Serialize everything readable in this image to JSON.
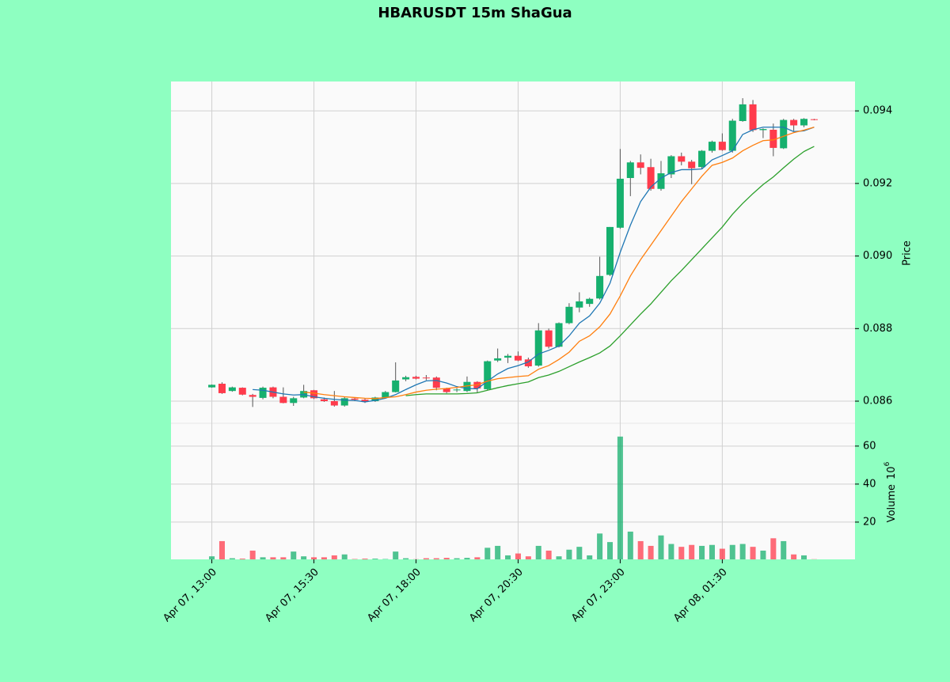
{
  "chart_data": {
    "type": "candlestick",
    "title": "HBARUSDT 15m ShaGua",
    "y_label": "Price",
    "volume_label": "Volume",
    "volume_unit": {
      "base": "10",
      "exponent": "6"
    },
    "xlim": [
      -4,
      63
    ],
    "xticks": [
      {
        "value": 0,
        "label": "Apr 07, 13:00"
      },
      {
        "value": 10,
        "label": "Apr 07, 15:30"
      },
      {
        "value": 20,
        "label": "Apr 07, 18:00"
      },
      {
        "value": 30,
        "label": "Apr 07, 20:30"
      },
      {
        "value": 40,
        "label": "Apr 07, 23:00"
      },
      {
        "value": 50,
        "label": "Apr 08, 01:30"
      }
    ],
    "ylim": [
      0.08539,
      0.09481
    ],
    "yticks": [
      0.086,
      0.088,
      {
        "value": 0.09,
        "label": "0.090"
      },
      0.092,
      0.094
    ],
    "volume_ylim": [
      0.4,
      72
    ],
    "volume_ticks": [
      20,
      40,
      60
    ],
    "grid": true,
    "up_color": "#16b06e",
    "down_color": "#ff3b4c",
    "open": [
      0.08638,
      0.08648,
      0.08628,
      0.08637,
      0.08617,
      0.08609,
      0.08638,
      0.08612,
      0.08595,
      0.0861,
      0.0863,
      0.08605,
      0.086,
      0.08588,
      0.08607,
      0.08604,
      0.086,
      0.0861,
      0.08625,
      0.0866,
      0.08667,
      0.08665,
      0.08665,
      0.08635,
      0.0863,
      0.08628,
      0.08653,
      0.08633,
      0.08712,
      0.0872,
      0.08725,
      0.08715,
      0.08698,
      0.08795,
      0.0875,
      0.08815,
      0.08858,
      0.08868,
      0.08883,
      0.08948,
      0.09078,
      0.09215,
      0.09258,
      0.09245,
      0.09185,
      0.09225,
      0.09275,
      0.0926,
      0.09245,
      0.0929,
      0.09315,
      0.0929,
      0.09372,
      0.09418,
      0.09347,
      0.09348,
      0.09297,
      0.09375,
      0.0936,
      0.09377
    ],
    "high": [
      0.08646,
      0.08652,
      0.0864,
      0.08638,
      0.0862,
      0.0864,
      0.0864,
      0.08638,
      0.08612,
      0.08645,
      0.08631,
      0.0861,
      0.08628,
      0.08612,
      0.0861,
      0.08608,
      0.08612,
      0.08628,
      0.08707,
      0.0867,
      0.0867,
      0.08672,
      0.08668,
      0.08637,
      0.08636,
      0.08668,
      0.08655,
      0.08712,
      0.08745,
      0.0873,
      0.08737,
      0.0872,
      0.08815,
      0.088,
      0.08817,
      0.0887,
      0.089,
      0.08885,
      0.08998,
      0.0908,
      0.09295,
      0.09262,
      0.0928,
      0.09268,
      0.09262,
      0.09278,
      0.09285,
      0.09265,
      0.09292,
      0.09318,
      0.09338,
      0.09378,
      0.09435,
      0.0943,
      0.09352,
      0.09365,
      0.09378,
      0.09378,
      0.0938,
      0.09378
    ],
    "low": [
      0.08637,
      0.0862,
      0.08626,
      0.08616,
      0.08584,
      0.08605,
      0.08608,
      0.08594,
      0.08587,
      0.08608,
      0.08606,
      0.08598,
      0.08585,
      0.08585,
      0.086,
      0.08595,
      0.08598,
      0.08608,
      0.08624,
      0.08655,
      0.0866,
      0.08658,
      0.0863,
      0.08622,
      0.08625,
      0.08625,
      0.08622,
      0.0863,
      0.08708,
      0.08705,
      0.0871,
      0.08692,
      0.08695,
      0.08745,
      0.08748,
      0.08812,
      0.08845,
      0.0886,
      0.0888,
      0.08945,
      0.09075,
      0.09165,
      0.09225,
      0.0918,
      0.0918,
      0.09215,
      0.0925,
      0.09198,
      0.0924,
      0.09285,
      0.0929,
      0.09285,
      0.0937,
      0.09342,
      0.09325,
      0.09275,
      0.09295,
      0.09345,
      0.09355,
      0.09374
    ],
    "close": [
      0.08645,
      0.08622,
      0.08638,
      0.08618,
      0.08612,
      0.08637,
      0.08612,
      0.08595,
      0.08608,
      0.08628,
      0.08608,
      0.086,
      0.08588,
      0.08608,
      0.08604,
      0.08598,
      0.0861,
      0.08625,
      0.08657,
      0.08666,
      0.08662,
      0.08663,
      0.08637,
      0.08625,
      0.08632,
      0.08653,
      0.08635,
      0.0871,
      0.08718,
      0.08725,
      0.08712,
      0.08696,
      0.08795,
      0.0875,
      0.08815,
      0.0886,
      0.08875,
      0.08882,
      0.08945,
      0.0908,
      0.09213,
      0.09258,
      0.09243,
      0.09185,
      0.09228,
      0.09275,
      0.0926,
      0.09242,
      0.0929,
      0.09315,
      0.09292,
      0.09373,
      0.09418,
      0.09347,
      0.0935,
      0.09298,
      0.09375,
      0.0936,
      0.09378,
      0.09375
    ],
    "volume": [
      2,
      10,
      1,
      0.8,
      5,
      1.5,
      1.5,
      1.5,
      4.5,
      2,
      1.5,
      1.5,
      2.5,
      3,
      0.6,
      0.8,
      0.8,
      0.6,
      4.5,
      1,
      0.5,
      1,
      1,
      1.2,
      1,
      1.2,
      1.5,
      6.5,
      7.5,
      2.5,
      3.5,
      2,
      7.5,
      5,
      2,
      5.5,
      7,
      2.5,
      14,
      9.5,
      65,
      15,
      10,
      7.5,
      13,
      8.5,
      7,
      8,
      7.5,
      8,
      6,
      8,
      8.5,
      7,
      5,
      11.5,
      10,
      3,
      2.5,
      0.5
    ],
    "moving_averages": [
      {
        "color": "#1f77b4",
        "values": [
          null,
          null,
          null,
          null,
          0.08632,
          0.0863,
          0.08625,
          0.0862,
          0.08617,
          0.08618,
          0.08612,
          0.08608,
          0.08605,
          0.08603,
          0.08602,
          0.08598,
          0.08602,
          0.08608,
          0.08618,
          0.08632,
          0.08645,
          0.08656,
          0.08657,
          0.0865,
          0.0864,
          0.08635,
          0.08634,
          0.08655,
          0.08675,
          0.0869,
          0.08698,
          0.08708,
          0.0873,
          0.0874,
          0.08752,
          0.0878,
          0.08815,
          0.08835,
          0.0887,
          0.08925,
          0.0901,
          0.09085,
          0.0915,
          0.0919,
          0.09215,
          0.0923,
          0.09238,
          0.09238,
          0.0924,
          0.09265,
          0.09277,
          0.0929,
          0.09335,
          0.09348,
          0.09355,
          0.09355,
          0.09355,
          0.09343,
          0.09345,
          0.09355
        ]
      },
      {
        "color": "#ff7f0e",
        "values": [
          null,
          null,
          null,
          null,
          null,
          null,
          null,
          null,
          null,
          0.08625,
          0.08622,
          0.08618,
          0.08615,
          0.08612,
          0.0861,
          0.08608,
          0.08607,
          0.0861,
          0.08612,
          0.08618,
          0.08625,
          0.0863,
          0.08633,
          0.08635,
          0.08638,
          0.08642,
          0.08645,
          0.08655,
          0.08662,
          0.08665,
          0.08668,
          0.0867,
          0.08688,
          0.08698,
          0.08715,
          0.08735,
          0.08765,
          0.0878,
          0.08805,
          0.0884,
          0.0889,
          0.08945,
          0.0899,
          0.0903,
          0.0907,
          0.0911,
          0.0915,
          0.09185,
          0.0922,
          0.0925,
          0.09258,
          0.0927,
          0.0929,
          0.09305,
          0.09318,
          0.0932,
          0.0933,
          0.0934,
          0.09347,
          0.09355
        ]
      },
      {
        "color": "#2ca02c",
        "values": [
          null,
          null,
          null,
          null,
          null,
          null,
          null,
          null,
          null,
          null,
          null,
          null,
          null,
          null,
          null,
          null,
          null,
          null,
          null,
          0.08615,
          0.08618,
          0.0862,
          0.0862,
          0.0862,
          0.0862,
          0.08621,
          0.08623,
          0.0863,
          0.08637,
          0.08643,
          0.08648,
          0.08653,
          0.08665,
          0.08672,
          0.08682,
          0.08695,
          0.08708,
          0.0872,
          0.08733,
          0.08752,
          0.0878,
          0.0881,
          0.0884,
          0.08868,
          0.089,
          0.08932,
          0.0896,
          0.0899,
          0.0902,
          0.0905,
          0.0908,
          0.09115,
          0.09145,
          0.09172,
          0.09197,
          0.09218,
          0.09243,
          0.09267,
          0.09288,
          0.09302
        ]
      }
    ]
  }
}
